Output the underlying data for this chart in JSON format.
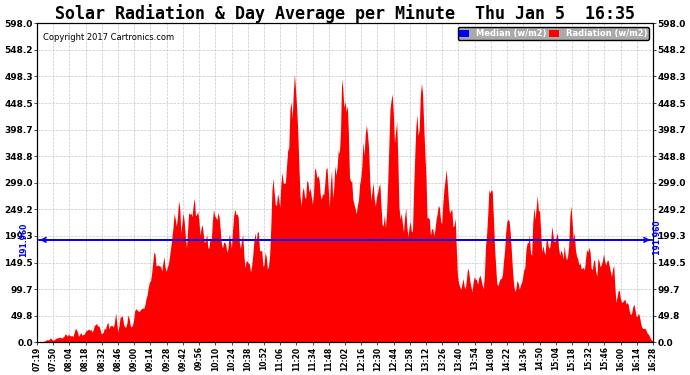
{
  "title": "Solar Radiation & Day Average per Minute  Thu Jan 5  16:35",
  "copyright": "Copyright 2017 Cartronics.com",
  "median_value": 191.96,
  "y_max": 598.0,
  "y_min": 0.0,
  "y_ticks": [
    0.0,
    49.8,
    99.7,
    149.5,
    199.3,
    249.2,
    299.0,
    348.8,
    398.7,
    448.5,
    498.3,
    548.2,
    598.0
  ],
  "y_tick_labels": [
    "0.0",
    "49.8",
    "99.7",
    "149.5",
    "199.3",
    "249.2",
    "299.0",
    "348.8",
    "398.7",
    "448.5",
    "498.3",
    "548.2",
    "598.0"
  ],
  "median_label": "Median (w/m2)",
  "radiation_label": "Radiation (w/m2)",
  "x_tick_labels": [
    "07:19",
    "07:50",
    "08:04",
    "08:18",
    "08:32",
    "08:46",
    "09:00",
    "09:14",
    "09:28",
    "09:42",
    "09:56",
    "10:10",
    "10:24",
    "10:38",
    "10:52",
    "11:06",
    "11:20",
    "11:34",
    "11:48",
    "12:02",
    "12:16",
    "12:30",
    "12:44",
    "12:58",
    "13:12",
    "13:26",
    "13:40",
    "13:54",
    "14:08",
    "14:22",
    "14:36",
    "14:50",
    "15:04",
    "15:18",
    "15:32",
    "15:46",
    "16:00",
    "16:14",
    "16:28"
  ],
  "fill_color": "#FF0000",
  "median_line_color": "#0000FF",
  "background_color": "#FFFFFF",
  "grid_color": "#C8C8C8",
  "title_fontsize": 12,
  "copyright_fontsize": 6,
  "tick_fontsize": 6.5,
  "xtick_fontsize": 5.5,
  "median_left_label": "191.960",
  "median_right_label": "191.960",
  "n_points": 549
}
